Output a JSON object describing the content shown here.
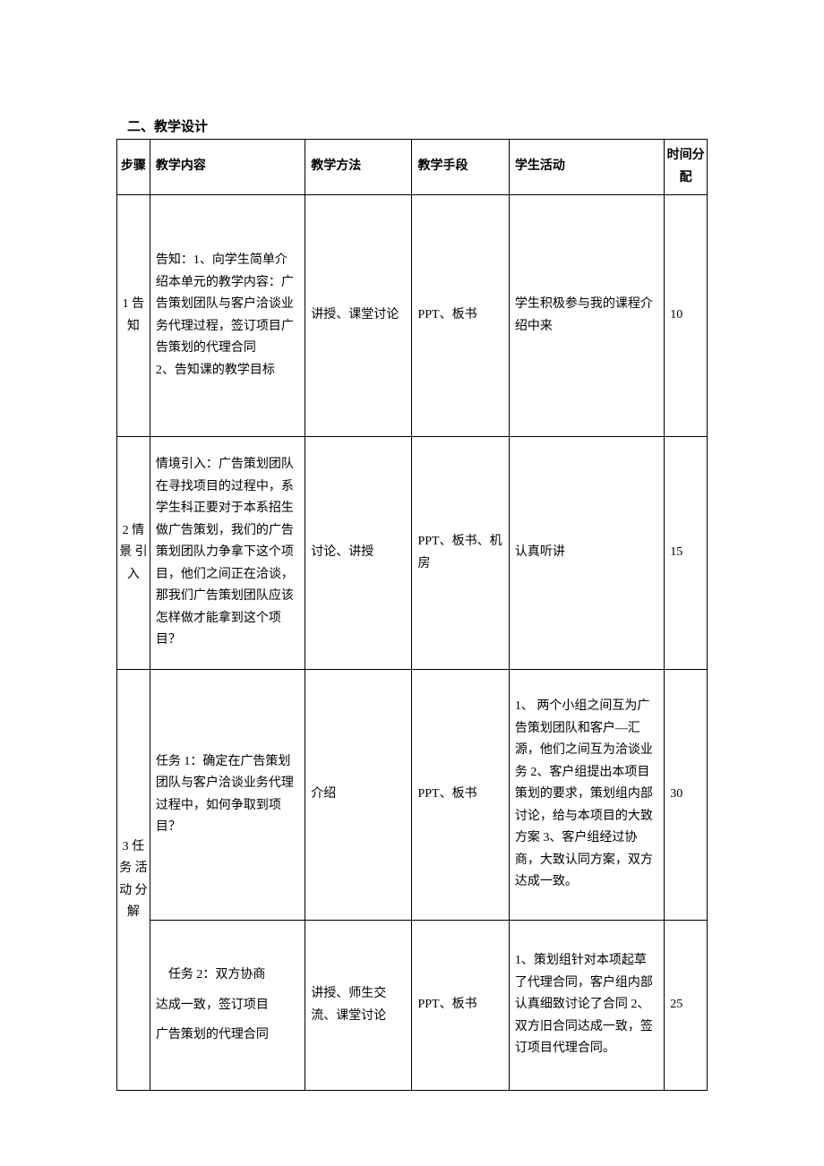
{
  "section_title": "二、教学设计",
  "headers": {
    "step": "步骤",
    "content": "教学内容",
    "method": "教学方法",
    "means": "教学手段",
    "activity": "学生活动",
    "time": "时间分配"
  },
  "rows": [
    {
      "step": "1 告 知",
      "content": "告知：1、向学生简单介绍本单元的教学内容：广告策划团队与客户洽谈业务代理过程，签订项目广告策划的代理合同\n2、告知课的教学目标",
      "method": "讲授、课堂讨论",
      "means": "PPT、板书",
      "activity": "学生积极参与我的课程介绍中来",
      "time": "10"
    },
    {
      "step": "2 情 景 引 入",
      "content": "情境引入：广告策划团队在寻找项目的过程中，系学生科正要对于本系招生做广告策划，我们的广告策划团队力争拿下这个项目，他们之间正在洽谈，那我们广告策划团队应该怎样做才能拿到这个项目？",
      "method": "讨论、讲授",
      "means": "PPT、板书、机房",
      "activity": "认真听讲",
      "time": "15"
    },
    {
      "step": "3 任 务 活 动 分 解",
      "content": "任务 1：确定在广告策划团队与客户洽谈业务代理过程中，如何争取到项目？",
      "method": "介绍",
      "means": "PPT、板书",
      "activity": "1、 两个小组之间互为广告策划团队和客户—汇源，他们之间互为洽谈业务 2、客户组提出本项目策划的要求，策划组内部讨论，给与本项目的大致方案 3、客户组经过协商，大致认同方案，双方达成一致。",
      "time": "30"
    },
    {
      "content": "　任务 2：双方协商\n达成一致，签订项目\n广告策划的代理合同",
      "method": "讲授、师生交流、课堂讨论",
      "means": "PPT、板书",
      "activity": "1、策划组针对本项起草了代理合同，客户组内部认真细致讨论了合同 2、双方旧合同达成一致，签订项目代理合同。",
      "time": "25"
    }
  ]
}
